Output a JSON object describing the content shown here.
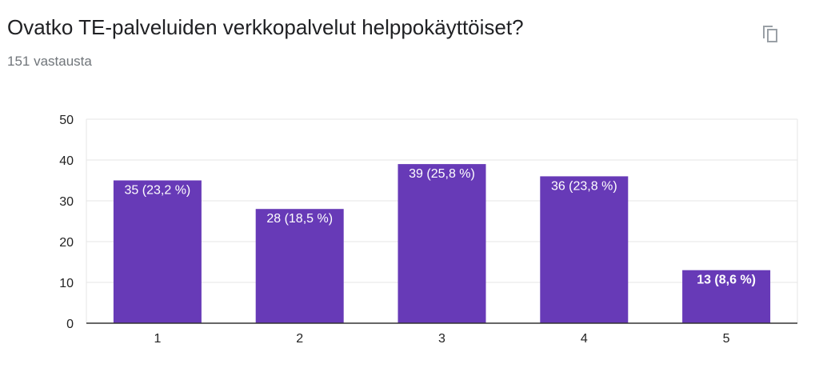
{
  "header": {
    "question": "Ovatko TE-palveluiden verkkopalvelut helppokäyttöiset?",
    "responses": "151 vastausta",
    "copy_icon": "copy-icon"
  },
  "colors": {
    "bar": "#673ab7",
    "grid": "#e6e6e6",
    "axis": "#333333",
    "text": "#222222",
    "bar_text": "#ffffff"
  },
  "chart_data": {
    "type": "bar",
    "categories": [
      "1",
      "2",
      "3",
      "4",
      "5"
    ],
    "values": [
      35,
      28,
      39,
      36,
      13
    ],
    "data_labels": [
      "35 (23,2 %)",
      "28 (18,5 %)",
      "39 (25,8 %)",
      "36 (23,8 %)",
      "13 (8,6 %)"
    ],
    "y_ticks": [
      0,
      10,
      20,
      30,
      40,
      50
    ],
    "ylim": [
      0,
      50
    ],
    "title": "",
    "xlabel": "",
    "ylabel": "",
    "grid": true,
    "legend": "none"
  }
}
